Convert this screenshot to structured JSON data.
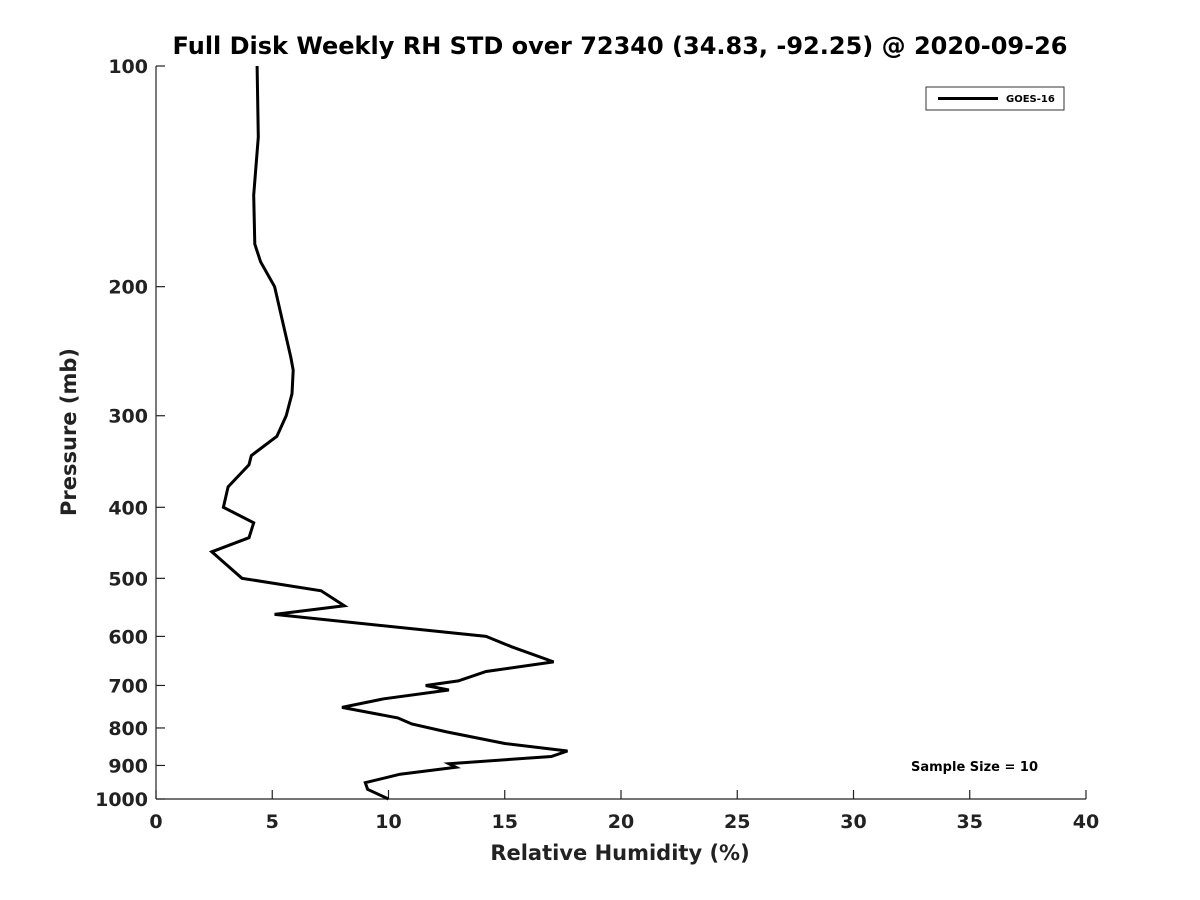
{
  "chart_data": {
    "type": "line",
    "title": "Full Disk Weekly RH STD over 72340 (34.83, -92.25) @ 2020-09-26",
    "xlabel": "Relative Humidity (%)",
    "ylabel": "Pressure (mb)",
    "xlim": [
      0,
      40
    ],
    "ylim": [
      100,
      1000
    ],
    "y_scale": "log",
    "y_reversed": true,
    "x_ticks": [
      "0",
      "5",
      "10",
      "15",
      "20",
      "25",
      "30",
      "35",
      "40"
    ],
    "y_ticks": [
      "100",
      "200",
      "300",
      "400",
      "500",
      "600",
      "700",
      "800",
      "900",
      "1000"
    ],
    "grid": false,
    "legend_position": "top-right",
    "series": [
      {
        "name": "GOES-16",
        "color": "#000000",
        "points": [
          [
            4.35,
            100
          ],
          [
            4.4,
            125
          ],
          [
            4.2,
            150
          ],
          [
            4.25,
            175
          ],
          [
            4.5,
            185
          ],
          [
            5.1,
            200
          ],
          [
            5.8,
            250
          ],
          [
            5.9,
            260
          ],
          [
            5.85,
            280
          ],
          [
            5.6,
            300
          ],
          [
            5.2,
            320
          ],
          [
            4.1,
            340
          ],
          [
            4.0,
            350
          ],
          [
            3.1,
            375
          ],
          [
            2.9,
            400
          ],
          [
            4.2,
            420
          ],
          [
            4.0,
            440
          ],
          [
            2.4,
            460
          ],
          [
            2.9,
            475
          ],
          [
            3.7,
            500
          ],
          [
            7.1,
            520
          ],
          [
            8.1,
            545
          ],
          [
            5.1,
            560
          ],
          [
            14.2,
            600
          ],
          [
            15.3,
            620
          ],
          [
            17.1,
            650
          ],
          [
            14.2,
            670
          ],
          [
            13.0,
            690
          ],
          [
            11.6,
            700
          ],
          [
            12.6,
            710
          ],
          [
            9.8,
            730
          ],
          [
            8.0,
            750
          ],
          [
            10.4,
            775
          ],
          [
            11.0,
            790
          ],
          [
            12.5,
            810
          ],
          [
            15.0,
            840
          ],
          [
            17.7,
            860
          ],
          [
            17.0,
            875
          ],
          [
            12.6,
            895
          ],
          [
            12.9,
            905
          ],
          [
            10.5,
            925
          ],
          [
            9.0,
            950
          ],
          [
            9.1,
            970
          ],
          [
            10.0,
            1000
          ]
        ]
      }
    ],
    "annotations": [
      "Sample Size = 10"
    ]
  }
}
